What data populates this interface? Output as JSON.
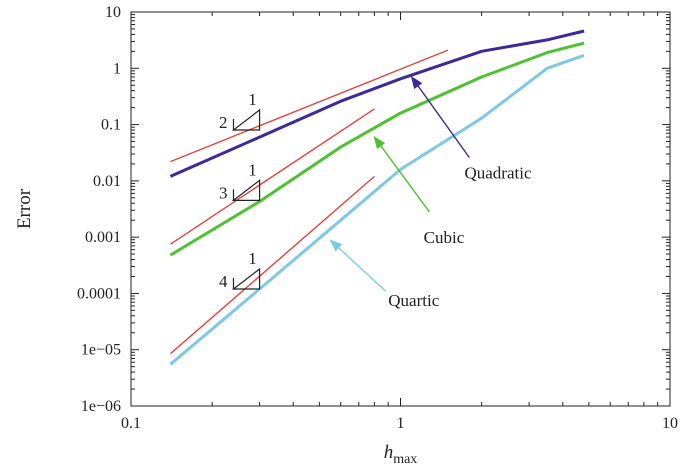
{
  "chart_data": {
    "type": "line",
    "xscale": "log",
    "yscale": "log",
    "xlim": [
      0.1,
      10
    ],
    "ylim": [
      1e-06,
      10
    ],
    "xlabel": "h",
    "xlabel_sub": "max",
    "ylabel": "Error",
    "grid": false,
    "x_ticks": [
      {
        "value": 0.1,
        "label": "0.1"
      },
      {
        "value": 1,
        "label": "1"
      },
      {
        "value": 10,
        "label": "10"
      }
    ],
    "y_ticks": [
      {
        "value": 10,
        "label": "10"
      },
      {
        "value": 1,
        "label": "1"
      },
      {
        "value": 0.1,
        "label": "0.1"
      },
      {
        "value": 0.01,
        "label": "0.01"
      },
      {
        "value": 0.001,
        "label": "0.001"
      },
      {
        "value": 0.0001,
        "label": "0.0001"
      },
      {
        "value": 1e-05,
        "label": "1e−05"
      },
      {
        "value": 1e-06,
        "label": "1e−06"
      }
    ],
    "series": [
      {
        "name": "Quadratic",
        "color": "#3b2a9a",
        "points": [
          [
            0.14,
            0.012
          ],
          [
            0.3,
            0.06
          ],
          [
            0.6,
            0.26
          ],
          [
            1,
            0.65
          ],
          [
            2,
            2.0
          ],
          [
            3.5,
            3.2
          ],
          [
            4.8,
            4.6
          ]
        ]
      },
      {
        "name": "Cubic",
        "color": "#4cc22e",
        "points": [
          [
            0.14,
            0.00048
          ],
          [
            0.3,
            0.0043
          ],
          [
            0.6,
            0.04
          ],
          [
            1,
            0.16
          ],
          [
            2,
            0.7
          ],
          [
            3.5,
            1.9
          ],
          [
            4.8,
            2.8
          ]
        ]
      },
      {
        "name": "Quartic",
        "color": "#7dc8e6",
        "points": [
          [
            0.14,
            5.5e-06
          ],
          [
            0.3,
            0.00012
          ],
          [
            0.6,
            0.002
          ],
          [
            1,
            0.016
          ],
          [
            2,
            0.13
          ],
          [
            3.5,
            1.0
          ],
          [
            4.8,
            1.7
          ]
        ]
      }
    ],
    "reference_lines": [
      {
        "slope_label": "2",
        "color": "#e8423c",
        "points": [
          [
            0.14,
            0.022
          ],
          [
            1.5,
            2.1
          ]
        ]
      },
      {
        "slope_label": "3",
        "color": "#e8423c",
        "points": [
          [
            0.14,
            0.00075
          ],
          [
            0.8,
            0.19
          ]
        ]
      },
      {
        "slope_label": "4",
        "color": "#e8423c",
        "points": [
          [
            0.14,
            8.5e-06
          ],
          [
            0.8,
            0.012
          ]
        ]
      }
    ],
    "slope_triangles": [
      {
        "order": "2",
        "run_label": "1",
        "x0": 0.24,
        "x1": 0.3,
        "y_base": 0.08
      },
      {
        "order": "3",
        "run_label": "1",
        "x0": 0.24,
        "x1": 0.3,
        "y_base": 0.0045
      },
      {
        "order": "4",
        "run_label": "1",
        "x0": 0.24,
        "x1": 0.3,
        "y_base": 0.00012
      }
    ],
    "annotations": [
      {
        "text": "Quadratic",
        "color": "#3b2a9a",
        "text_at": [
          2.3,
          0.011
        ],
        "arrow_from": [
          1.8,
          0.026
        ],
        "arrow_to": [
          1.1,
          0.7
        ]
      },
      {
        "text": "Cubic",
        "color": "#4cc22e",
        "text_at": [
          1.45,
          0.00078
        ],
        "arrow_from": [
          1.28,
          0.0028
        ],
        "arrow_to": [
          0.8,
          0.06
        ]
      },
      {
        "text": "Quartic",
        "color": "#7dc8e6",
        "text_at": [
          1.12,
          6e-05
        ],
        "arrow_from": [
          0.88,
          0.00011
        ],
        "arrow_to": [
          0.55,
          0.00088
        ]
      }
    ]
  }
}
